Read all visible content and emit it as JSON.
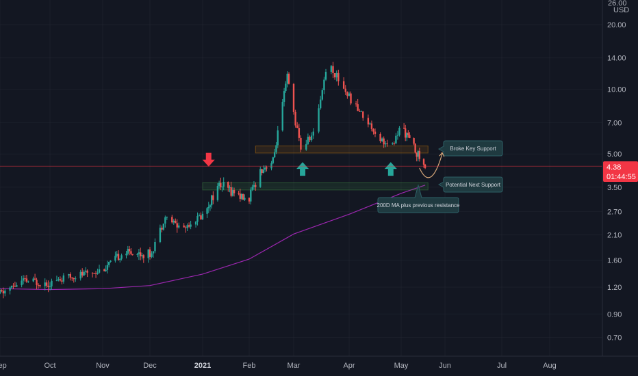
{
  "chart_data": {
    "type": "candlestick",
    "scale": "log",
    "currency": "USD",
    "ylim": [
      0.6,
      26.0
    ],
    "y_ticks": [
      0.7,
      0.9,
      1.2,
      1.6,
      2.1,
      2.7,
      3.5,
      5.0,
      7.0,
      10.0,
      14.0,
      20.0
    ],
    "y_tick_labels": [
      "0.70",
      "0.90",
      "1.20",
      "1.60",
      "2.10",
      "2.70",
      "3.50",
      "5.00",
      "7.00",
      "10.00",
      "14.00",
      "20.00"
    ],
    "top_partial_tick_label": "26.00",
    "x_labels": [
      {
        "date": "2020-09-01",
        "text": "Sep"
      },
      {
        "date": "2020-10-01",
        "text": "Oct"
      },
      {
        "date": "2020-11-01",
        "text": "Nov"
      },
      {
        "date": "2020-12-01",
        "text": "Dec"
      },
      {
        "date": "2021-01-01",
        "text": "2021",
        "bold": true
      },
      {
        "date": "2021-02-01",
        "text": "Feb"
      },
      {
        "date": "2021-03-01",
        "text": "Mar"
      },
      {
        "date": "2021-04-01",
        "text": "Apr"
      },
      {
        "date": "2021-05-01",
        "text": "May"
      },
      {
        "date": "2021-06-01",
        "text": "Jun"
      },
      {
        "date": "2021-07-01",
        "text": "Jul"
      },
      {
        "date": "2021-08-01",
        "text": "Aug"
      }
    ],
    "last_price": "4.38",
    "countdown": "01:44:55",
    "colors": {
      "up": "#26a69a",
      "down": "#ef5350",
      "ma": "#9c27b0",
      "last": "#f23645",
      "background": "#131722",
      "grid": "#2a2e39"
    },
    "price_path": [
      [
        "2020-09-01",
        1.12
      ],
      [
        "2020-09-15",
        1.28
      ],
      [
        "2020-10-01",
        1.26
      ],
      [
        "2020-10-15",
        1.35
      ],
      [
        "2020-11-01",
        1.45
      ],
      [
        "2020-11-15",
        1.75
      ],
      [
        "2020-12-01",
        1.7
      ],
      [
        "2020-12-10",
        2.55
      ],
      [
        "2020-12-20",
        2.25
      ],
      [
        "2021-01-01",
        2.6
      ],
      [
        "2021-01-12",
        3.6
      ],
      [
        "2021-01-25",
        3.25
      ],
      [
        "2021-01-31",
        3.0
      ],
      [
        "2021-02-08",
        4.2
      ],
      [
        "2021-02-16",
        4.6
      ],
      [
        "2021-02-25",
        11.5
      ],
      [
        "2021-03-05",
        5.3
      ],
      [
        "2021-03-12",
        6.2
      ],
      [
        "2021-03-20",
        13.5
      ],
      [
        "2021-04-01",
        9.2
      ],
      [
        "2021-04-15",
        6.5
      ],
      [
        "2021-04-25",
        5.2
      ],
      [
        "2021-05-01",
        6.8
      ],
      [
        "2021-05-10",
        5.4
      ],
      [
        "2021-05-18",
        4.3
      ]
    ],
    "ma_series": {
      "name": "200D MA",
      "points": [
        [
          "2020-09-01",
          1.18
        ],
        [
          "2020-10-01",
          1.17
        ],
        [
          "2020-11-01",
          1.18
        ],
        [
          "2020-12-01",
          1.22
        ],
        [
          "2021-01-01",
          1.38
        ],
        [
          "2021-02-01",
          1.62
        ],
        [
          "2021-03-01",
          2.12
        ],
        [
          "2021-04-01",
          2.62
        ],
        [
          "2021-05-01",
          3.28
        ],
        [
          "2021-05-18",
          3.58
        ]
      ]
    },
    "zones": [
      {
        "from": "2021-02-05",
        "to": "2021-05-20",
        "low": 5.05,
        "high": 5.45
      },
      {
        "from": "2021-01-01",
        "to": "2021-05-20",
        "low": 3.4,
        "high": 3.68
      }
    ],
    "annotations": [
      {
        "text": "Broke Key Support"
      },
      {
        "text": "Potential Next Support"
      },
      {
        "text": "200D MA plus previous resistance"
      }
    ],
    "arrows": [
      {
        "direction": "down",
        "date": "2021-01-05",
        "price": 4.5,
        "color": "#f23645"
      },
      {
        "direction": "up",
        "date": "2021-03-06",
        "price": 4.45,
        "color": "#26a69a"
      },
      {
        "direction": "up",
        "date": "2021-04-25",
        "price": 4.45,
        "color": "#26a69a"
      }
    ]
  }
}
